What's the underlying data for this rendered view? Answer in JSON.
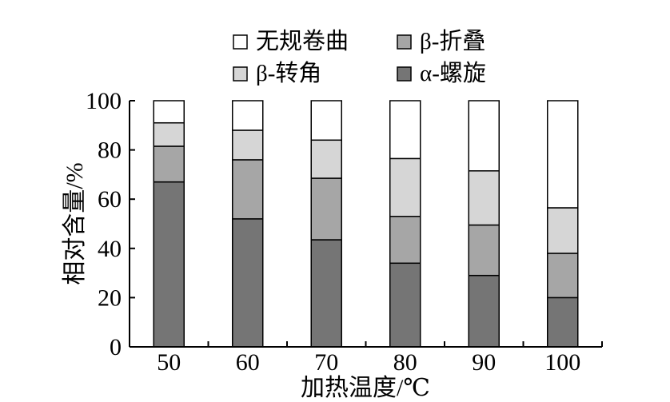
{
  "chart_data": {
    "type": "bar",
    "stacked": true,
    "categories": [
      "50",
      "60",
      "70",
      "80",
      "90",
      "100"
    ],
    "series": [
      {
        "name": "α-螺旋",
        "color": "#757575",
        "values": [
          67,
          52,
          43.5,
          34,
          29,
          20
        ]
      },
      {
        "name": "β-折叠",
        "color": "#a6a6a6",
        "values": [
          14.5,
          24,
          25,
          19,
          20.5,
          18
        ]
      },
      {
        "name": "β-转角",
        "color": "#d6d6d6",
        "values": [
          9.5,
          12,
          15.5,
          23.5,
          22,
          18.5
        ]
      },
      {
        "name": "无规卷曲",
        "color": "#ffffff",
        "values": [
          9,
          12,
          16,
          23.5,
          28.5,
          43.5
        ]
      }
    ],
    "xlabel": "加热温度/℃",
    "ylabel": "相对含量/%",
    "ylim": [
      0,
      100
    ],
    "yticks": [
      0,
      20,
      40,
      60,
      80,
      100
    ],
    "grid": false,
    "legend_position": "top",
    "legend_order": [
      "无规卷曲",
      "β-折叠",
      "β-转角",
      "α-螺旋"
    ]
  }
}
